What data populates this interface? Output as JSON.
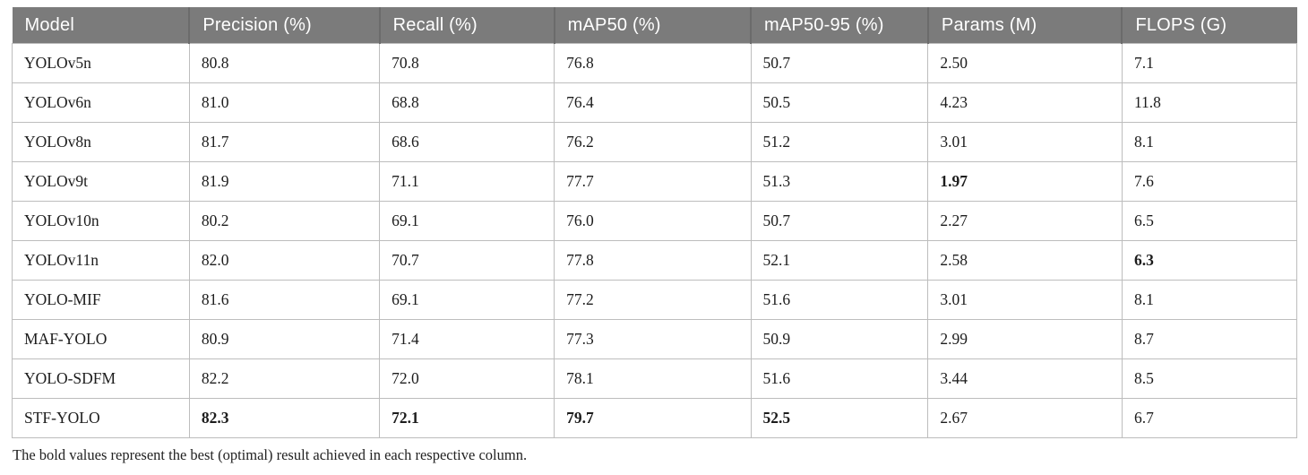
{
  "table": {
    "columns": [
      "Model",
      "Precision (%)",
      "Recall (%)",
      "mAP50 (%)",
      "mAP50-95 (%)",
      "Params (M)",
      "FLOPS (G)"
    ],
    "column_widths_pct": [
      13.8,
      14.8,
      13.6,
      15.3,
      13.8,
      15.1,
      13.6
    ],
    "rows": [
      {
        "model": "YOLOv5n",
        "values": [
          "80.8",
          "70.8",
          "76.8",
          "50.7",
          "2.50",
          "7.1"
        ],
        "bold": []
      },
      {
        "model": "YOLOv6n",
        "values": [
          "81.0",
          "68.8",
          "76.4",
          "50.5",
          "4.23",
          "11.8"
        ],
        "bold": []
      },
      {
        "model": "YOLOv8n",
        "values": [
          "81.7",
          "68.6",
          "76.2",
          "51.2",
          "3.01",
          "8.1"
        ],
        "bold": []
      },
      {
        "model": "YOLOv9t",
        "values": [
          "81.9",
          "71.1",
          "77.7",
          "51.3",
          "1.97",
          "7.6"
        ],
        "bold": [
          4
        ]
      },
      {
        "model": "YOLOv10n",
        "values": [
          "80.2",
          "69.1",
          "76.0",
          "50.7",
          "2.27",
          "6.5"
        ],
        "bold": []
      },
      {
        "model": "YOLOv11n",
        "values": [
          "82.0",
          "70.7",
          "77.8",
          "52.1",
          "2.58",
          "6.3"
        ],
        "bold": [
          5
        ]
      },
      {
        "model": "YOLO-MIF",
        "values": [
          "81.6",
          "69.1",
          "77.2",
          "51.6",
          "3.01",
          "8.1"
        ],
        "bold": []
      },
      {
        "model": "MAF-YOLO",
        "values": [
          "80.9",
          "71.4",
          "77.3",
          "50.9",
          "2.99",
          "8.7"
        ],
        "bold": []
      },
      {
        "model": "YOLO-SDFM",
        "values": [
          "82.2",
          "72.0",
          "78.1",
          "51.6",
          "3.44",
          "8.5"
        ],
        "bold": []
      },
      {
        "model": "STF-YOLO",
        "values": [
          "82.3",
          "72.1",
          "79.7",
          "52.5",
          "2.67",
          "6.7"
        ],
        "bold": [
          0,
          1,
          2,
          3
        ]
      }
    ],
    "footnote": "The bold values represent the best (optimal) result achieved in each respective column."
  },
  "colors": {
    "header_bg": "#7b7b7b",
    "header_separator": "#6b6b6b",
    "header_text": "#ffffff",
    "body_border": "#bdbdbd",
    "body_text": "#1c1c1c"
  }
}
